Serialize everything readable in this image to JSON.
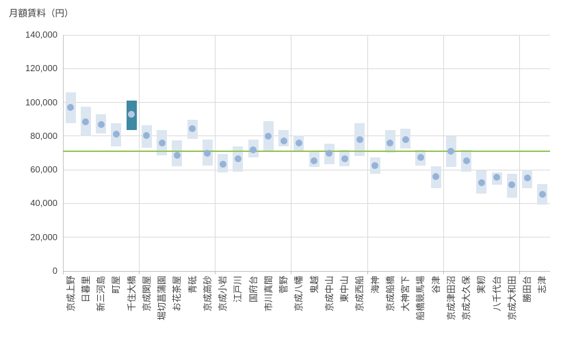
{
  "chart_data": {
    "type": "bar",
    "subtype": "floating-range-bars-with-mean-marker-dots",
    "title": "",
    "ylabel": "月額賃料（円）",
    "xlabel": "",
    "legend": "none",
    "grid": true,
    "ylim": [
      0,
      140000
    ],
    "y_tick_step": 20000,
    "y_tick_labels": [
      "0",
      "20,000",
      "40,000",
      "60,000",
      "80,000",
      "100,000",
      "120,000",
      "140,000"
    ],
    "x_gridline_every_n_categories": 5,
    "categories": [
      "京成上野",
      "日暮里",
      "新三河島",
      "町屋",
      "千住大橋",
      "京成関屋",
      "堀切菖蒲園",
      "お花茶屋",
      "青砥",
      "京成高砂",
      "京成小岩",
      "江戸川",
      "国府台",
      "市川真間",
      "菅野",
      "京成八幡",
      "鬼越",
      "京成中山",
      "東中山",
      "京成西船",
      "海神",
      "京成船橋",
      "大神宮下",
      "船橋競馬場",
      "谷津",
      "京成津田沼",
      "京成大久保",
      "実籾",
      "八千代台",
      "京成大和田",
      "勝田台",
      "志津"
    ],
    "series": [
      {
        "name": "range_low",
        "values": [
          87500,
          80000,
          81500,
          74000,
          83500,
          73000,
          68500,
          62000,
          78500,
          62500,
          58500,
          59000,
          67500,
          70500,
          74000,
          71500,
          61500,
          63500,
          62000,
          68000,
          57500,
          70000,
          72500,
          62500,
          49000,
          61500,
          59000,
          46000,
          51000,
          43500,
          49000,
          39500
        ]
      },
      {
        "name": "range_high",
        "values": [
          106000,
          97500,
          93000,
          87500,
          101000,
          86500,
          83500,
          77500,
          89500,
          78000,
          69500,
          74000,
          78000,
          89000,
          83500,
          80500,
          70500,
          75500,
          72000,
          87500,
          67500,
          83500,
          84500,
          72000,
          62000,
          80000,
          72000,
          59500,
          58500,
          57500,
          60000,
          51500
        ]
      },
      {
        "name": "mean_marker",
        "values": [
          97000,
          88500,
          87000,
          81000,
          93000,
          80500,
          76000,
          68500,
          84500,
          70000,
          63500,
          66500,
          72000,
          80000,
          77000,
          76000,
          65500,
          70000,
          66500,
          78000,
          62500,
          76000,
          78000,
          67500,
          56000,
          71000,
          65500,
          52500,
          55500,
          51000,
          55000,
          45500
        ]
      }
    ],
    "highlight": {
      "category": "千住大橋",
      "index": 4
    },
    "reference_line": {
      "value": 71000
    }
  },
  "colors": {
    "bar_fill": "#dce6f1",
    "marker": "#95b3d7",
    "highlight_bar_fill": "#3e89a3",
    "highlight_marker": "#b8c7e2",
    "reference_line": "#92c353",
    "gridline": "#d9d9d9",
    "axis_line": "#bfbfbf",
    "text": "#404040"
  }
}
